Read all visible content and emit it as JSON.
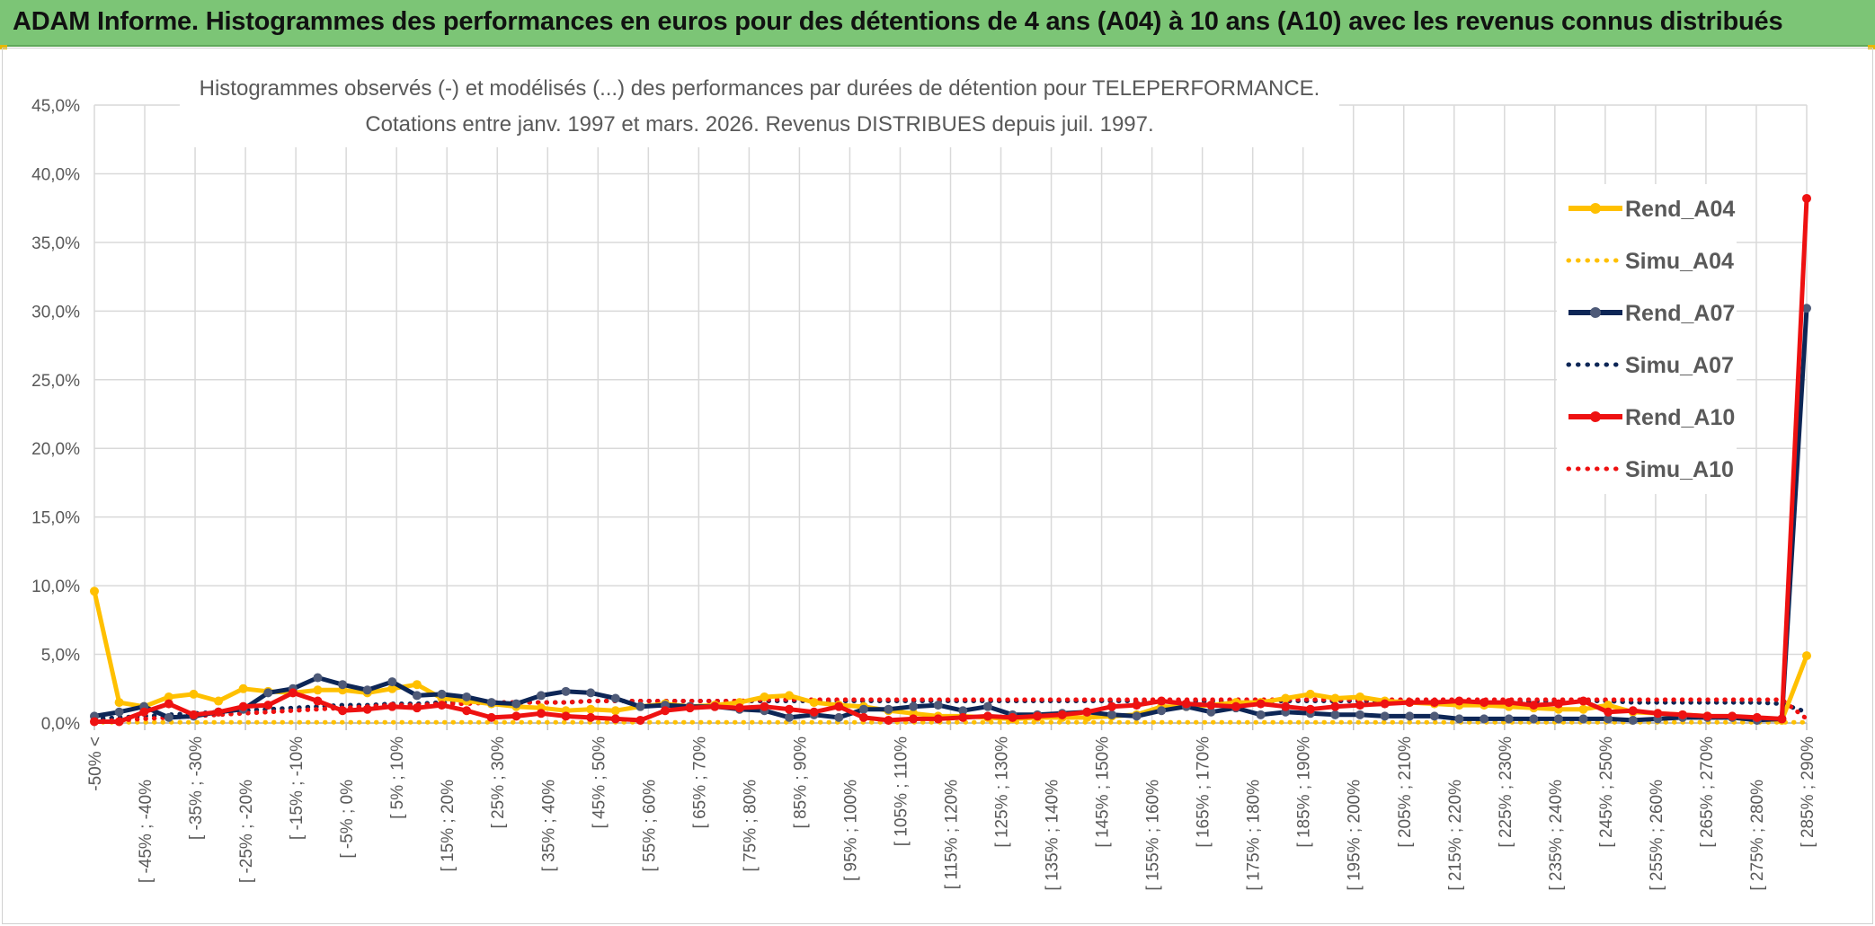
{
  "banner": {
    "title": "ADAM Informe. Histogrammes des performances en euros pour des détentions de 4 ans (A04) à 10 ans (A10) avec les revenus connus distribués"
  },
  "colors": {
    "banner_bg": "#7cc576",
    "A04": "#ffc000",
    "A07": "#0d2656",
    "A10": "#ee1111",
    "grid": "#d9d9d9",
    "axis_text": "#595959"
  },
  "chart_data": {
    "type": "line",
    "title_line1": "Histogrammes observés (-) et modélisés (...) des performances par durées de détention pour TELEPERFORMANCE.",
    "title_line2": "Cotations entre janv. 1997 et mars. 2026. Revenus DISTRIBUES depuis juil. 1997.",
    "ylim": [
      0,
      45
    ],
    "y_ticks": [
      "0,0%",
      "5,0%",
      "10,0%",
      "15,0%",
      "20,0%",
      "25,0%",
      "30,0%",
      "35,0%",
      "40,0%",
      "45,0%"
    ],
    "x_labels": [
      "-50% <",
      "[ -45% ; -40%",
      "[ -35% ; -30%",
      "[ -25% ; -20%",
      "[ -15% ; -10%",
      "[ -5% ; 0%",
      "[ 5% ; 10%",
      "[ 15% ; 20%",
      "[ 25% ; 30%",
      "[ 35% ; 40%",
      "[ 45% ; 50%",
      "[ 55% ; 60%",
      "[ 65% ; 70%",
      "[ 75% ; 80%",
      "[ 85% ; 90%",
      "[ 95% ; 100%",
      "[ 105% ; 110%",
      "[ 115% ; 120%",
      "[ 125% ; 130%",
      "[ 135% ; 140%",
      "[ 145% ; 150%",
      "[ 155% ; 160%",
      "[ 165% ; 170%",
      "[ 175% ; 180%",
      "[ 185% ; 190%",
      "[ 195% ; 200%",
      "[ 205% ; 210%",
      "[ 215% ; 220%",
      "[ 225% ; 230%",
      "[ 235% ; 240%",
      "[ 245% ; 250%",
      "[ 255% ; 260%",
      "[ 265% ; 270%",
      "[ 275% ; 280%",
      "[ 285% ; 290%"
    ],
    "n_points": 70,
    "series": [
      {
        "name": "Rend_A04",
        "style": "solid",
        "color": "#ffc000",
        "values": [
          9.6,
          1.5,
          1.2,
          1.9,
          2.1,
          1.6,
          2.5,
          2.3,
          2.2,
          2.4,
          2.4,
          2.2,
          2.5,
          2.8,
          1.8,
          1.6,
          1.4,
          1.2,
          1.1,
          0.9,
          1.0,
          0.9,
          1.2,
          1.4,
          1.2,
          1.3,
          1.5,
          1.9,
          2.0,
          1.5,
          1.3,
          1.2,
          0.9,
          0.7,
          0.5,
          0.5,
          0.4,
          0.3,
          0.4,
          0.4,
          0.4,
          0.5,
          0.6,
          1.2,
          1.2,
          1.3,
          1.5,
          1.5,
          1.8,
          2.1,
          1.8,
          1.9,
          1.6,
          1.5,
          1.4,
          1.3,
          1.3,
          1.2,
          1.1,
          1.0,
          1.0,
          1.3,
          0.8,
          0.7,
          0.6,
          0.5,
          0.4,
          0.3,
          0.2,
          4.9
        ]
      },
      {
        "name": "Simu_A04",
        "style": "dotted",
        "color": "#ffc000",
        "values": [
          0.05,
          0.05,
          0.05,
          0.05,
          0.05,
          0.05,
          0.05,
          0.05,
          0.05,
          0.05,
          0.05,
          0.05,
          0.05,
          0.05,
          0.05,
          0.05,
          0.05,
          0.05,
          0.05,
          0.05,
          0.05,
          0.05,
          0.05,
          0.05,
          0.05,
          0.05,
          0.05,
          0.05,
          0.05,
          0.05,
          0.05,
          0.05,
          0.05,
          0.05,
          0.05,
          0.05,
          0.05,
          0.05,
          0.05,
          0.05,
          0.05,
          0.05,
          0.05,
          0.05,
          0.05,
          0.05,
          0.05,
          0.05,
          0.05,
          0.05,
          0.05,
          0.05,
          0.05,
          0.05,
          0.05,
          0.05,
          0.05,
          0.05,
          0.05,
          0.05,
          0.05,
          0.05,
          0.05,
          0.05,
          0.05,
          0.05,
          0.05,
          0.05,
          0.05,
          0.05
        ]
      },
      {
        "name": "Rend_A07",
        "style": "solid",
        "color": "#0d2656",
        "values": [
          0.5,
          0.8,
          1.2,
          0.4,
          0.5,
          0.8,
          1.0,
          2.2,
          2.5,
          3.3,
          2.8,
          2.4,
          3.0,
          2.0,
          2.1,
          1.9,
          1.5,
          1.4,
          2.0,
          2.3,
          2.2,
          1.8,
          1.2,
          1.3,
          1.2,
          1.2,
          1.0,
          0.9,
          0.4,
          0.6,
          0.4,
          1.0,
          1.0,
          1.2,
          1.3,
          0.9,
          1.2,
          0.6,
          0.6,
          0.7,
          0.8,
          0.6,
          0.5,
          0.9,
          1.2,
          0.8,
          1.1,
          0.6,
          0.8,
          0.7,
          0.6,
          0.6,
          0.5,
          0.5,
          0.5,
          0.3,
          0.3,
          0.3,
          0.3,
          0.3,
          0.3,
          0.3,
          0.2,
          0.3,
          0.4,
          0.4,
          0.4,
          0.2,
          0.3,
          30.2
        ]
      },
      {
        "name": "Simu_A07",
        "style": "dotted",
        "color": "#0d2656",
        "values": [
          0.3,
          0.4,
          0.5,
          0.6,
          0.7,
          0.8,
          0.9,
          1.0,
          1.1,
          1.2,
          1.3,
          1.3,
          1.4,
          1.4,
          1.5,
          1.5,
          1.5,
          1.5,
          1.5,
          1.5,
          1.6,
          1.6,
          1.6,
          1.6,
          1.6,
          1.6,
          1.6,
          1.6,
          1.6,
          1.6,
          1.6,
          1.6,
          1.6,
          1.6,
          1.6,
          1.6,
          1.6,
          1.6,
          1.6,
          1.6,
          1.6,
          1.6,
          1.6,
          1.6,
          1.6,
          1.6,
          1.6,
          1.6,
          1.6,
          1.6,
          1.6,
          1.6,
          1.6,
          1.6,
          1.6,
          1.6,
          1.6,
          1.6,
          1.6,
          1.6,
          1.6,
          1.6,
          1.5,
          1.5,
          1.5,
          1.5,
          1.5,
          1.5,
          1.4,
          0.8
        ]
      },
      {
        "name": "Rend_A10",
        "style": "solid",
        "color": "#ee1111",
        "values": [
          0.1,
          0.1,
          0.8,
          1.4,
          0.6,
          0.8,
          1.2,
          1.3,
          2.2,
          1.6,
          0.9,
          1.0,
          1.2,
          1.1,
          1.3,
          0.9,
          0.4,
          0.5,
          0.7,
          0.5,
          0.4,
          0.3,
          0.2,
          0.9,
          1.1,
          1.2,
          1.1,
          1.2,
          1.0,
          0.8,
          1.2,
          0.4,
          0.2,
          0.3,
          0.3,
          0.4,
          0.5,
          0.4,
          0.5,
          0.6,
          0.8,
          1.2,
          1.3,
          1.6,
          1.4,
          1.3,
          1.2,
          1.4,
          1.2,
          1.0,
          1.2,
          1.3,
          1.4,
          1.5,
          1.5,
          1.6,
          1.5,
          1.5,
          1.3,
          1.4,
          1.6,
          0.8,
          0.9,
          0.7,
          0.6,
          0.5,
          0.5,
          0.4,
          0.3,
          38.2
        ]
      },
      {
        "name": "Simu_A10",
        "style": "dotted",
        "color": "#ee1111",
        "values": [
          0.1,
          0.2,
          0.3,
          0.4,
          0.5,
          0.6,
          0.7,
          0.8,
          0.9,
          1.0,
          1.1,
          1.2,
          1.3,
          1.3,
          1.4,
          1.4,
          1.5,
          1.5,
          1.5,
          1.5,
          1.6,
          1.6,
          1.6,
          1.6,
          1.6,
          1.6,
          1.6,
          1.7,
          1.7,
          1.7,
          1.7,
          1.7,
          1.7,
          1.7,
          1.7,
          1.7,
          1.7,
          1.7,
          1.7,
          1.7,
          1.7,
          1.7,
          1.7,
          1.7,
          1.7,
          1.7,
          1.7,
          1.7,
          1.7,
          1.7,
          1.7,
          1.7,
          1.7,
          1.7,
          1.7,
          1.7,
          1.7,
          1.7,
          1.7,
          1.7,
          1.7,
          1.7,
          1.7,
          1.7,
          1.7,
          1.7,
          1.7,
          1.7,
          1.7,
          0.3
        ]
      }
    ],
    "legend": [
      "Rend_A04",
      "Simu_A04",
      "Rend_A07",
      "Simu_A07",
      "Rend_A10",
      "Simu_A10"
    ],
    "legend_position": "right"
  }
}
